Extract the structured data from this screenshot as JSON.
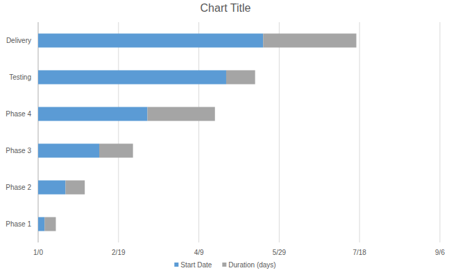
{
  "chart_data": {
    "type": "bar",
    "title": "Chart Title",
    "orientation": "horizontal",
    "stacked": true,
    "grid": true,
    "legend": "bottom",
    "categories": [
      "Phase 1",
      "Phase 2",
      "Phase 3",
      "Phase 4",
      "Testing",
      "Delivery"
    ],
    "series": [
      {
        "name": "Start Date",
        "color": "#5b9bd5",
        "values": [
          4,
          17,
          38,
          68,
          117,
          140
        ]
      },
      {
        "name": "Duration (days)",
        "color": "#a5a5a5",
        "values": [
          7,
          12,
          21,
          42,
          18,
          58
        ]
      }
    ],
    "xlim": [
      0,
      250
    ],
    "xticks": [
      {
        "value": 0,
        "label": "1/0"
      },
      {
        "value": 50,
        "label": "2/19"
      },
      {
        "value": 100,
        "label": "4/9"
      },
      {
        "value": 150,
        "label": "5/29"
      },
      {
        "value": 200,
        "label": "7/18"
      },
      {
        "value": 250,
        "label": "9/6"
      }
    ]
  }
}
